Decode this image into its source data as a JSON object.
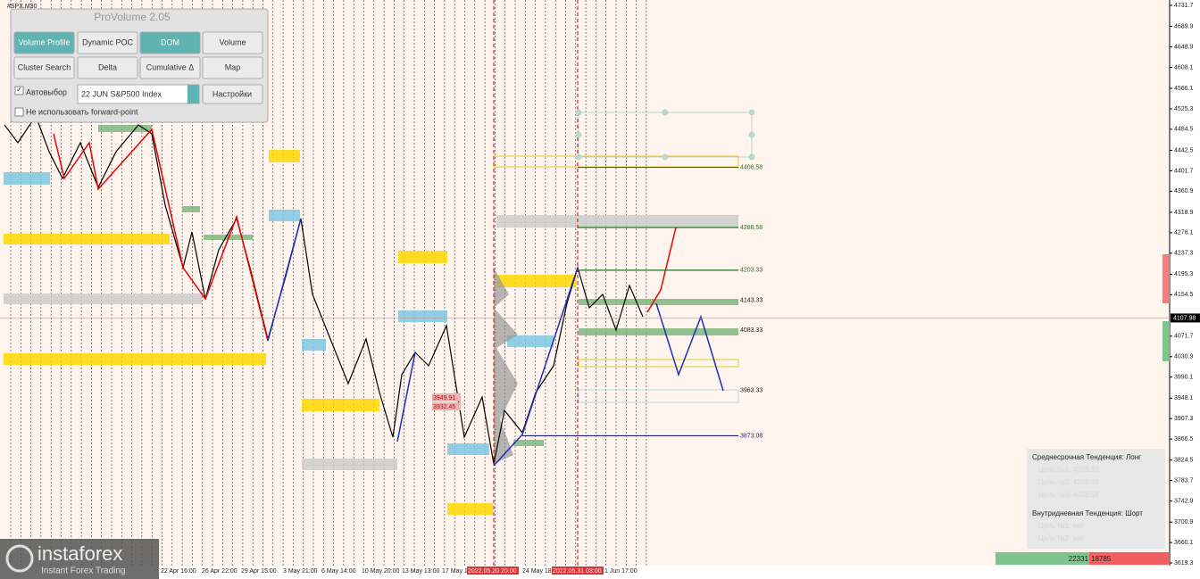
{
  "symbol": "#SPX,M30",
  "panel": {
    "title": "ProVolume 2.05",
    "buttons": [
      "Volume Profile",
      "Dynamic POC",
      "DOM",
      "Volume",
      "Cluster Search",
      "Delta",
      "Cumulative Δ",
      "Map"
    ],
    "auto_select": "Автовыбор",
    "instrument": "22 JUN S&P500 Index",
    "settings": "Настройки",
    "forward_point": "Не использовать forward-point"
  },
  "price_axis": {
    "ticks": [
      4731.7,
      4689.9,
      4648.9,
      4608.1,
      4566.1,
      4525.3,
      4484.5,
      4442.5,
      4401.7,
      4360.9,
      4318.9,
      4278.1,
      4237.3,
      4195.3,
      4154.5,
      4071.7,
      4030.9,
      3990.1,
      3948.1,
      3907.3,
      3866.5,
      3824.5,
      3783.7,
      3742.9,
      3700.9,
      3660.1,
      3619.3
    ],
    "current": 4107.98
  },
  "time_axis": [
    "22 Apr 16:00",
    "26 Apr 22:00",
    "29 Apr 15:00",
    "3 May 21:00",
    "6 May 14:00",
    "10 May 20:00",
    "13 May 13:00",
    "17 May 1",
    "2022.05.20 20:00",
    "24 May 18:",
    "2022.05.31 03:00",
    "1 Jun 17:00"
  ],
  "levels": [
    {
      "value": 4408.58,
      "color": "#1f7a1f"
    },
    {
      "value": 4288.58,
      "color": "#1f7a1f"
    },
    {
      "value": 4203.33,
      "color": "#1f7a1f"
    },
    {
      "value": 4143.33,
      "color": "#222222"
    },
    {
      "value": 4083.33,
      "color": "#222222"
    },
    {
      "value": 3963.33,
      "color": "#222222"
    },
    {
      "value": 3873.08,
      "color": "#1a237e"
    }
  ],
  "order_labels": [
    "3949.91",
    "3932.45"
  ],
  "trend_box": {
    "medium_title": "Среднесрочная Тенденция: Лонг",
    "medium_targets": [
      "Цель №1: 4203.33",
      "Цель №2: 4288.58",
      "Цель №3: 4408.58"
    ],
    "intraday_title": "Внутридневная Тенденция: Шорт",
    "intraday_targets": [
      "Цель №1: нет",
      "Цель №2: нет"
    ]
  },
  "volume_bar": {
    "buy": 22331,
    "sell": 18785
  },
  "watermark": {
    "brand": "instaforex",
    "tagline": "Instant Forex Trading"
  }
}
